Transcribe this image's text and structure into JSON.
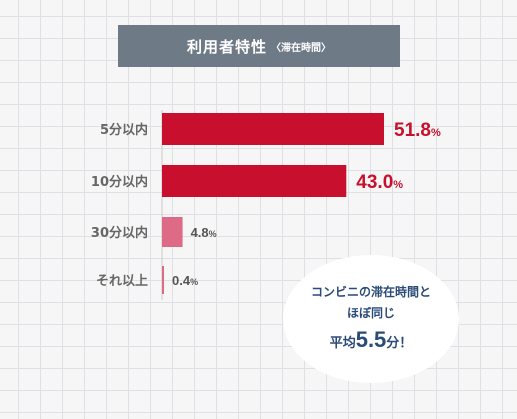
{
  "title": {
    "main": "利用者特性",
    "sub": "〈滞在時間〉"
  },
  "chart_data": {
    "type": "bar",
    "orientation": "horizontal",
    "categories": [
      "5分以内",
      "10分以内",
      "30分以内",
      "それ以上"
    ],
    "values": [
      51.8,
      43.0,
      4.8,
      0.4
    ],
    "value_labels": [
      "51.8%",
      "43.0%",
      "4.8%",
      "0.4%"
    ],
    "unit": "%",
    "xlim": [
      0,
      60
    ],
    "grid": true
  },
  "colors": {
    "top": "#c8102e",
    "rest": "#de6b85",
    "top_label": "#c8102e",
    "rest_label": "#555555",
    "category_label": "#666666"
  },
  "callout": {
    "line1": "コンビニの滞在時間と",
    "line2": "ほぼ同じ",
    "prefix": "平均",
    "number": "5.5",
    "suffix": "分！"
  }
}
